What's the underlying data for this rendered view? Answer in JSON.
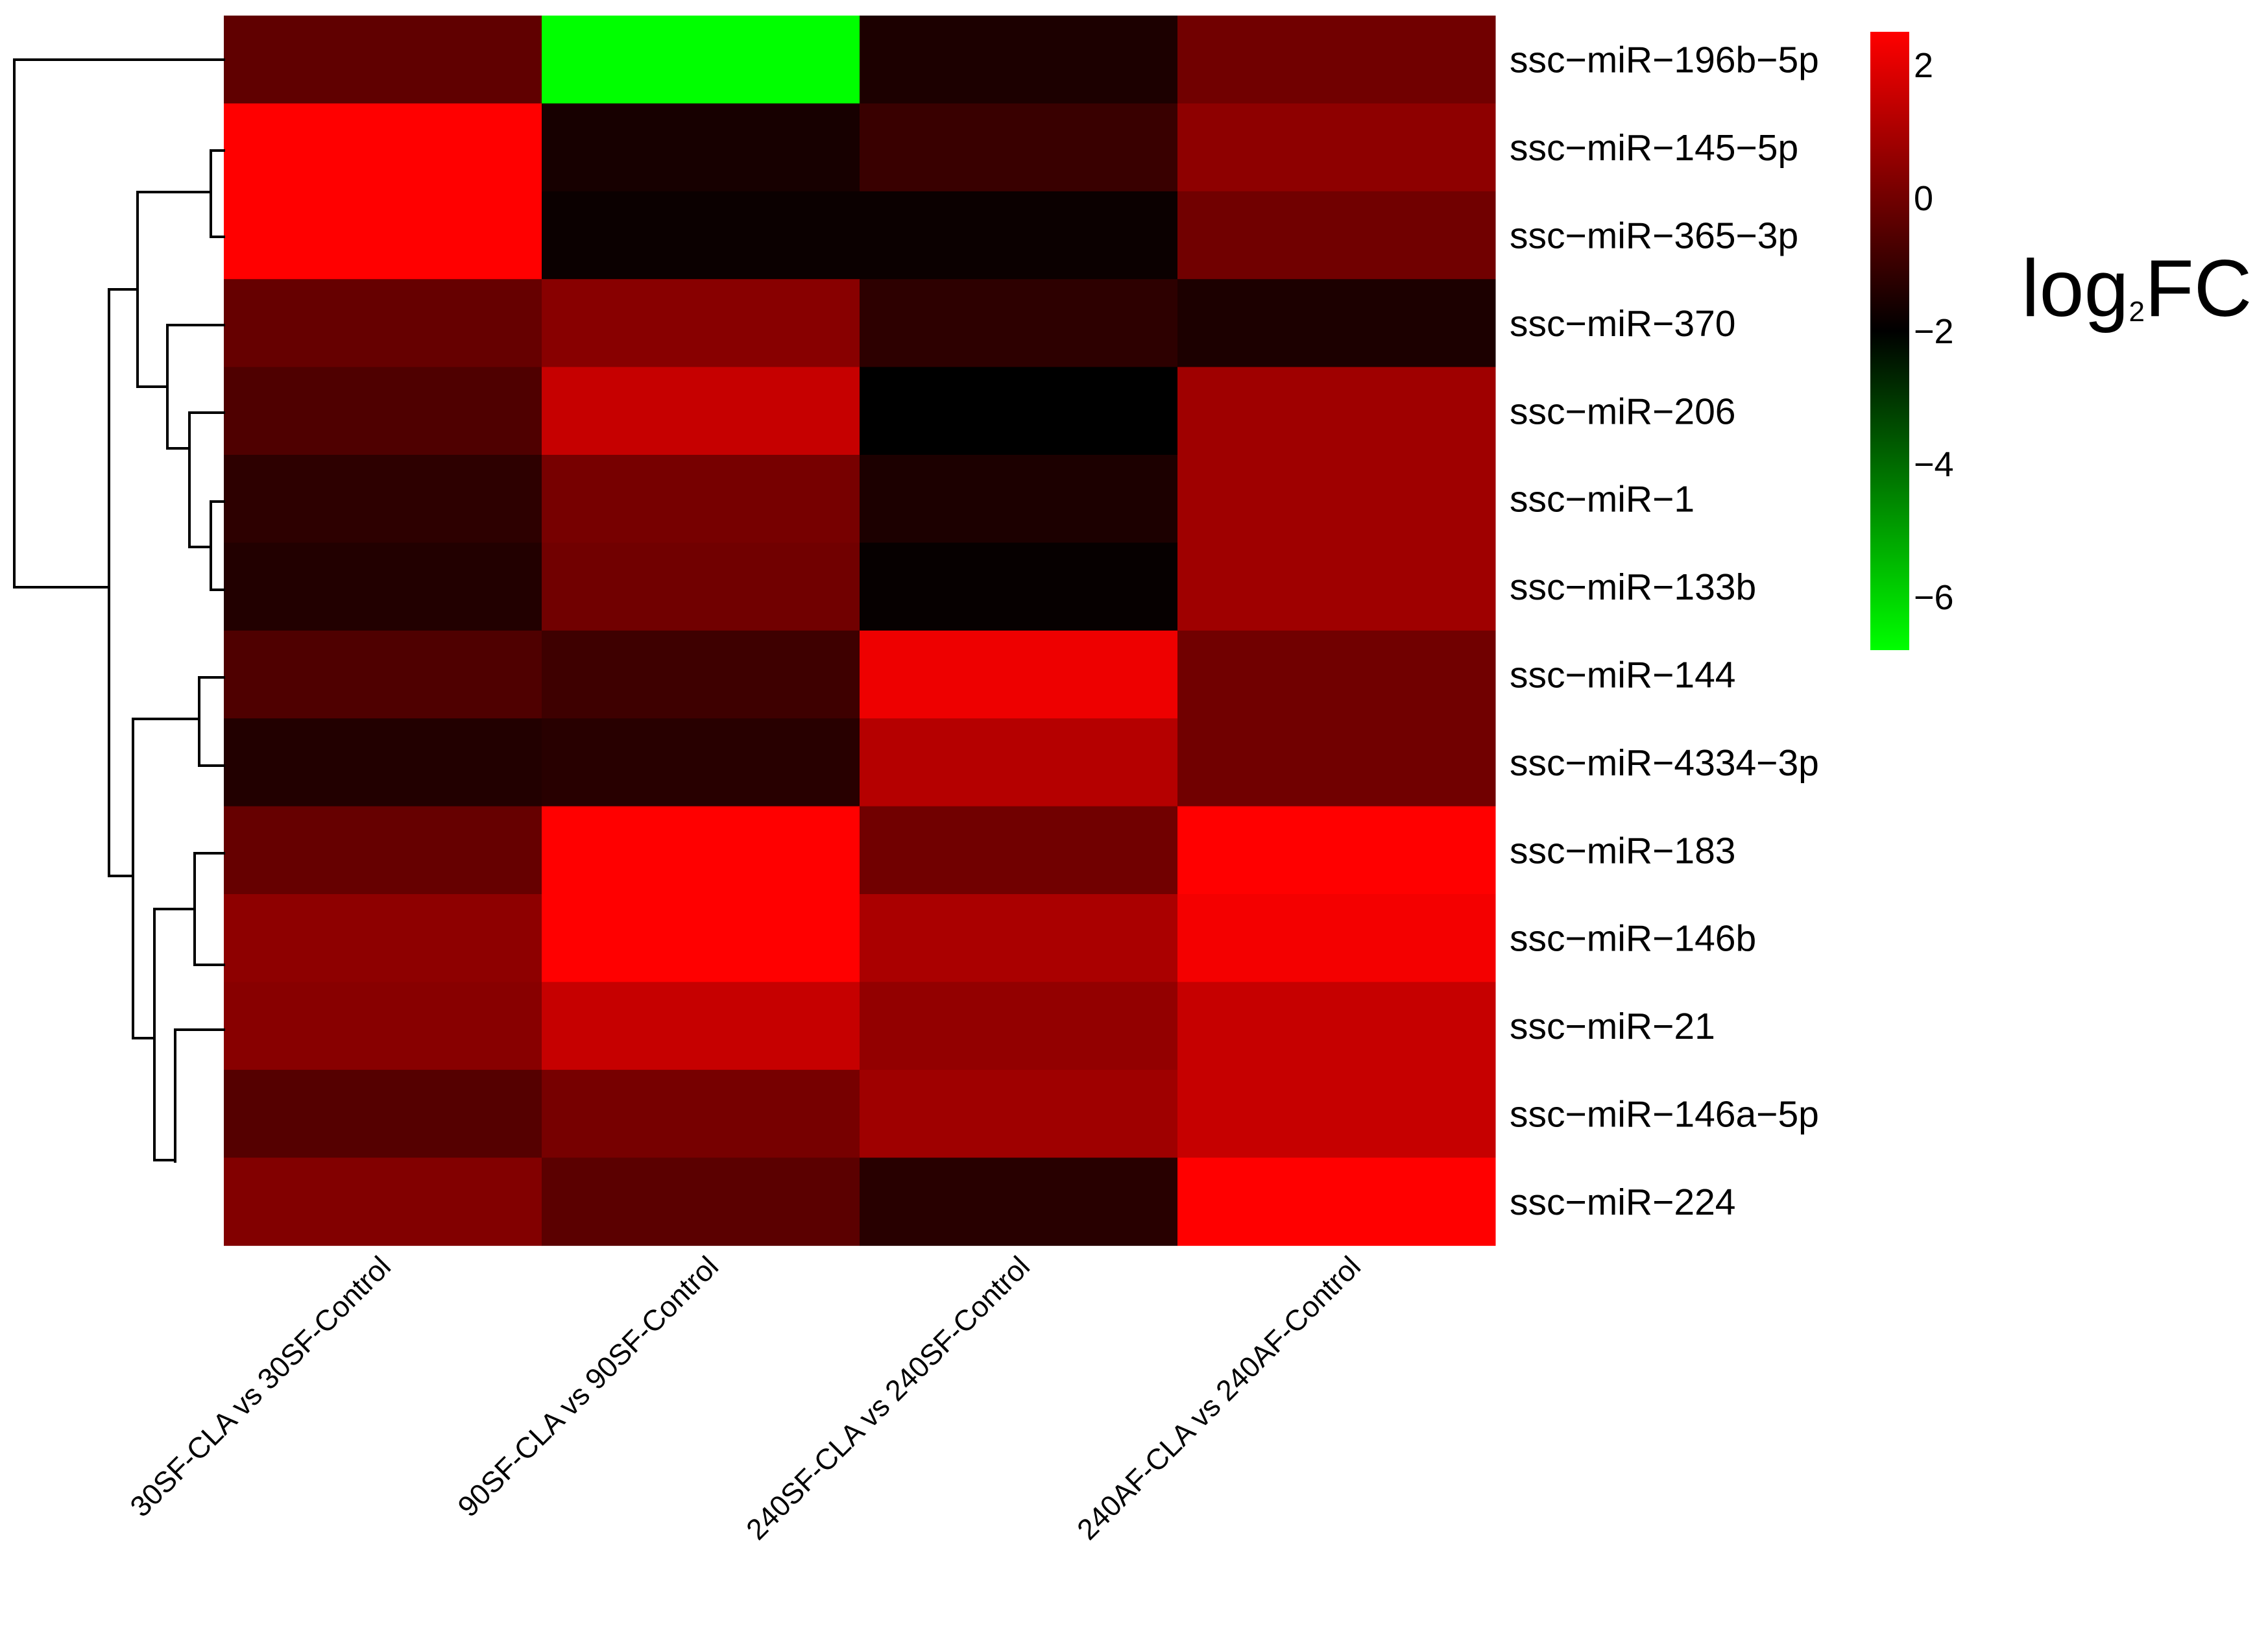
{
  "chart_data": {
    "type": "heatmap",
    "title": "",
    "row_labels": [
      "ssc−miR−196b−5p",
      "ssc−miR−145−5p",
      "ssc−miR−365−3p",
      "ssc−miR−370",
      "ssc−miR−206",
      "ssc−miR−1",
      "ssc−miR−133b",
      "ssc−miR−144",
      "ssc−miR−4334−3p",
      "ssc−miR−183",
      "ssc−miR−146b",
      "ssc−miR−21",
      "ssc−miR−146a−5p",
      "ssc−miR−224"
    ],
    "col_labels": [
      "30SF-CLA  vs 30SF-Control",
      "90SF-CLA vs 90SF-Control",
      "240SF-CLA vs 240SF-Control",
      "240AF-CLA vs 240AF-Control"
    ],
    "values": [
      [
        -0.3,
        -6.8,
        -1.5,
        0.0
      ],
      [
        2.5,
        -1.6,
        -1.0,
        0.5
      ],
      [
        2.5,
        -1.8,
        -1.8,
        0.0
      ],
      [
        -0.2,
        0.4,
        -1.2,
        -1.5
      ],
      [
        -0.6,
        1.5,
        -2.0,
        0.8
      ],
      [
        -1.2,
        0.1,
        -1.5,
        0.8
      ],
      [
        -1.4,
        0.0,
        -1.9,
        0.8
      ],
      [
        -0.6,
        -0.9,
        2.2,
        0.0
      ],
      [
        -1.4,
        -1.3,
        1.2,
        0.0
      ],
      [
        -0.2,
        2.5,
        0.0,
        2.5
      ],
      [
        0.5,
        2.5,
        1.0,
        2.3
      ],
      [
        0.4,
        1.5,
        0.6,
        1.5
      ],
      [
        -0.5,
        0.1,
        0.8,
        1.5
      ],
      [
        0.3,
        -0.4,
        -1.3,
        2.5
      ]
    ],
    "color_scale": {
      "min": -6.8,
      "mid": -2.0,
      "max": 2.5,
      "low_color": "#00ff00",
      "mid_color": "#000000",
      "high_color": "#ff0000"
    },
    "legend": {
      "title_main": "log",
      "title_sub": "2",
      "title_tail": "FC",
      "ticks": [
        "2",
        "0",
        "−2",
        "−4",
        "−6"
      ],
      "tick_values": [
        2,
        0,
        -2,
        -4,
        -6
      ],
      "placement": "right"
    },
    "row_dendrogram": "left",
    "row_order_clusters": [
      [
        0
      ],
      [
        [
          1,
          2
        ],
        [
          3,
          [
            4,
            [
              5,
              6
            ]
          ]
        ]
      ],
      [
        [
          7,
          8
        ],
        [
          [
            9,
            [
              10
            ]
          ],
          [
            11,
            [
              12,
              13
            ]
          ]
        ]
      ]
    ]
  }
}
